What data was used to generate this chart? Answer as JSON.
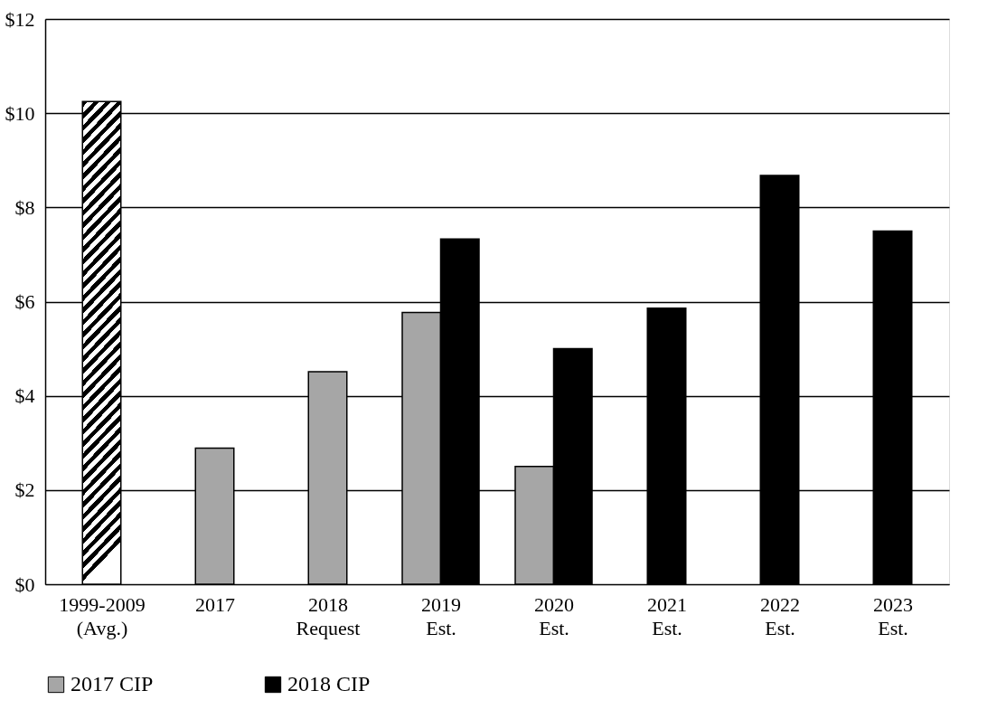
{
  "chart_data": {
    "type": "bar",
    "categories": [
      "1999-2009 (Avg.)",
      "2017",
      "2018 Request",
      "2019 Est.",
      "2020 Est.",
      "2021 Est.",
      "2022 Est.",
      "2023 Est."
    ],
    "series": [
      {
        "color": "#000000",
        "values": [
          10.25,
          null,
          null,
          null,
          null,
          null,
          null,
          null
        ]
      },
      {
        "name": "2017 CIP",
        "color": "#a6a6a6",
        "values": [
          null,
          2.89,
          4.51,
          5.77,
          2.5,
          null,
          null,
          null
        ]
      },
      {
        "name": "2018 CIP",
        "color": "#000000",
        "values": [
          null,
          null,
          null,
          7.33,
          5.0,
          5.86,
          8.68,
          7.5
        ]
      }
    ],
    "ylim": [
      0,
      12
    ],
    "yticks": [
      {
        "value": 0,
        "label": "$0"
      },
      {
        "value": 2,
        "label": "$2"
      },
      {
        "value": 4,
        "label": "$4"
      },
      {
        "value": 6,
        "label": "$6"
      },
      {
        "value": 8,
        "label": "$8"
      },
      {
        "value": 10,
        "label": "$10"
      },
      {
        "value": 12,
        "label": "$12"
      }
    ],
    "grid": "y",
    "legend": "bottom"
  }
}
